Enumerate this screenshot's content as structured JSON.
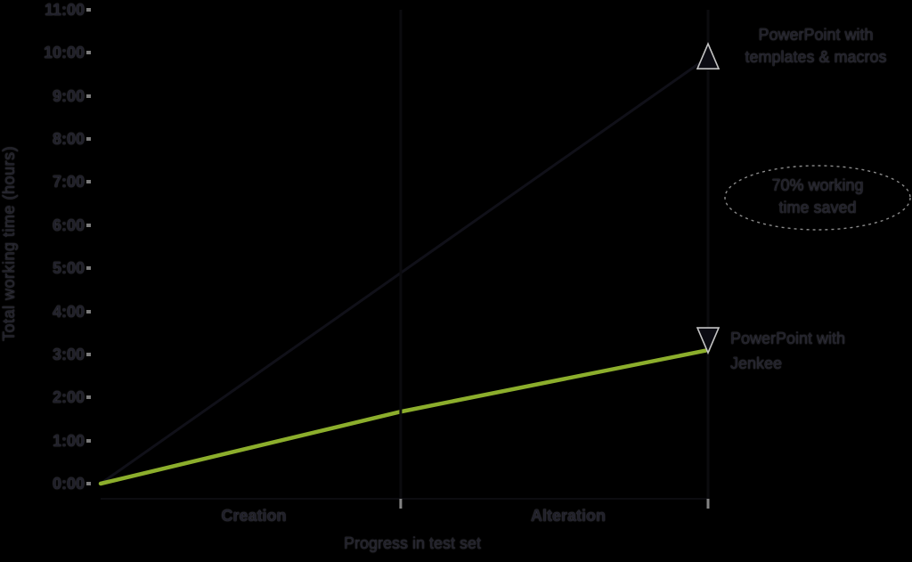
{
  "chart_data": {
    "type": "line",
    "title": "",
    "xlabel": "Progress in test set",
    "ylabel": "Total working time (hours)",
    "x_axis": {
      "categories": [
        "Creation",
        "Alteration"
      ],
      "section_boundaries_fraction": [
        0,
        0.494,
        1
      ]
    },
    "y_axis": {
      "unit": "hours",
      "min": 0,
      "max": 11,
      "tick_labels": [
        "11:00",
        "10:00",
        "9:00",
        "8:00",
        "7:00",
        "6:00",
        "5:00",
        "4:00",
        "3:00",
        "2:00",
        "1:00",
        "0:00"
      ]
    },
    "series": [
      {
        "name": "PowerPoint with templates & macros",
        "color": "#101018",
        "width": 3,
        "marker": "triangle-up",
        "x_fraction": [
          0,
          1
        ],
        "hours": [
          0,
          9.9
        ]
      },
      {
        "name": "PowerPoint with Jenkee",
        "color": "#8cae2c",
        "width": 4.5,
        "marker": "triangle-down",
        "x_fraction": [
          0,
          0.494,
          1
        ],
        "hours": [
          0,
          1.67,
          3.1
        ]
      }
    ],
    "annotation": "70% working time saved",
    "legend_position": "right-inline-annotations",
    "grid": "off"
  },
  "annotations": {
    "manual": {
      "line1": "PowerPoint with",
      "line2": "templates & macros"
    },
    "savings": {
      "line1": "70% working",
      "line2": "time saved"
    },
    "tool": {
      "line1": "PowerPoint with",
      "line2": "Jenkee"
    }
  },
  "colors": {
    "background": "#000000",
    "text": "#20202a",
    "tick_mark": "#9a9a9a",
    "green_line": "#8cae2c",
    "dark_line": "#101018",
    "marker_outline": "#c4c4c4",
    "marker_fill": "#0b0b12",
    "ellipse_stroke": "#8a8a8a"
  }
}
